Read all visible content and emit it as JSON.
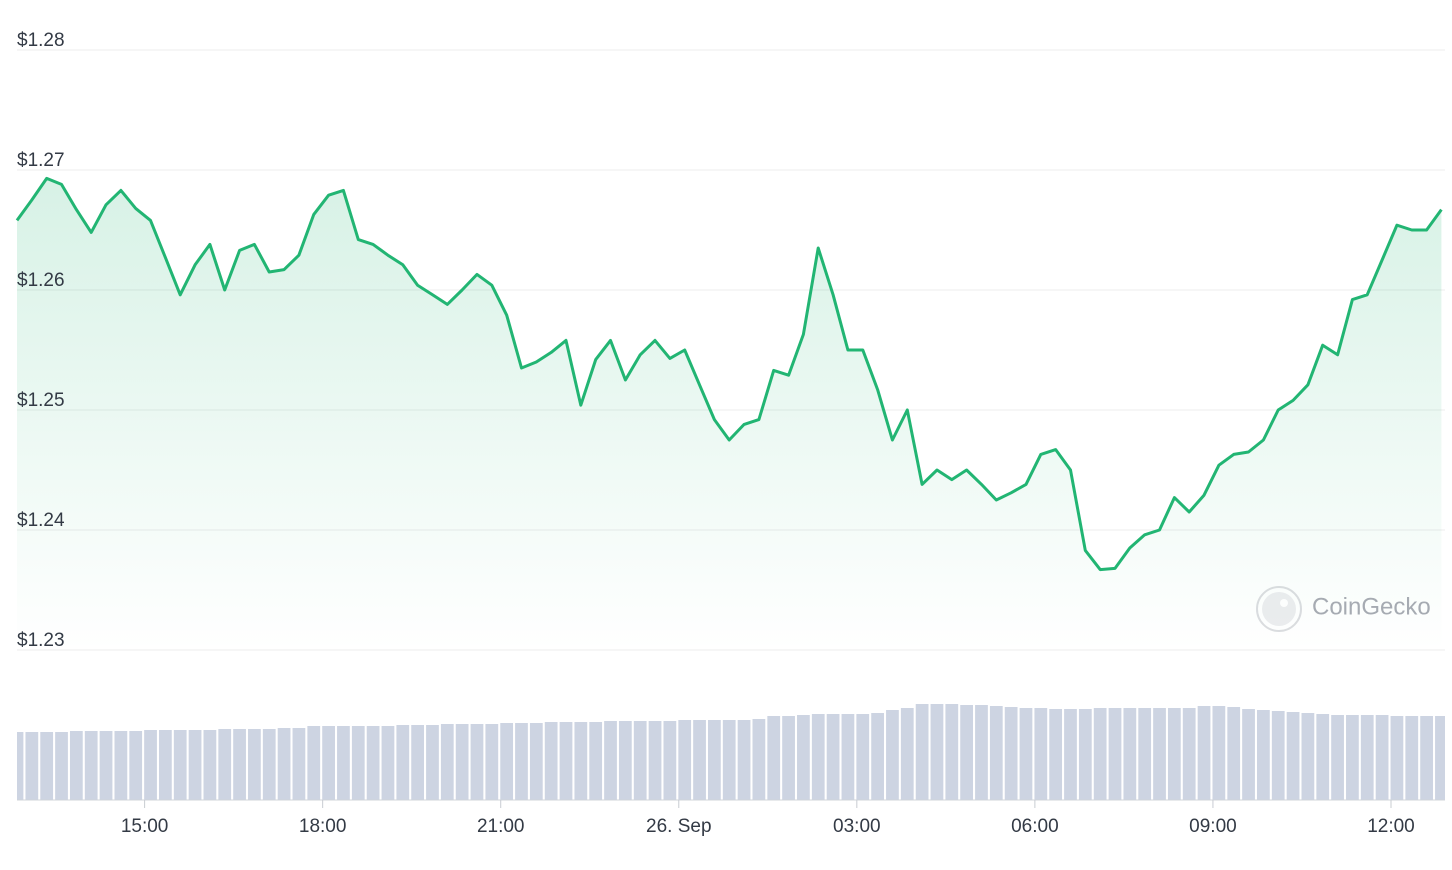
{
  "chart_data": {
    "type": "line",
    "watermark": "CoinGecko",
    "x": [
      12.85,
      13.1,
      13.35,
      13.6,
      13.85,
      14.1,
      14.35,
      14.6,
      14.85,
      15.1,
      15.35,
      15.6,
      15.85,
      16.1,
      16.35,
      16.6,
      16.85,
      17.1,
      17.35,
      17.6,
      17.85,
      18.1,
      18.35,
      18.6,
      18.85,
      19.1,
      19.35,
      19.6,
      19.85,
      20.1,
      20.35,
      20.6,
      20.85,
      21.1,
      21.35,
      21.6,
      21.85,
      22.1,
      22.35,
      22.6,
      22.85,
      23.1,
      23.35,
      23.6,
      23.85,
      24.1,
      24.35,
      24.6,
      24.85,
      25.1,
      25.35,
      25.6,
      25.85,
      26.1,
      26.35,
      26.6,
      26.85,
      27.1,
      27.35,
      27.6,
      27.85,
      28.1,
      28.35,
      28.6,
      28.85,
      29.1,
      29.35,
      29.6,
      29.85,
      30.1,
      30.35,
      30.6,
      30.85,
      31.1,
      31.35,
      31.6,
      31.85,
      32.1,
      32.35,
      32.6,
      32.85,
      33.1,
      33.35,
      33.6,
      33.85,
      34.1,
      34.35,
      34.6,
      34.85,
      35.1,
      35.35,
      35.6,
      35.85,
      36.1,
      36.35,
      36.6,
      36.85
    ],
    "series": [
      {
        "name": "Price",
        "color": "#22b573",
        "values": [
          1.2658,
          1.2675,
          1.2693,
          1.2688,
          1.2667,
          1.2648,
          1.2671,
          1.2683,
          1.2668,
          1.2658,
          1.2627,
          1.2596,
          1.2621,
          1.2638,
          1.26,
          1.2633,
          1.2638,
          1.2615,
          1.2617,
          1.2629,
          1.2663,
          1.2679,
          1.2683,
          1.2642,
          1.2638,
          1.2629,
          1.2621,
          1.2604,
          1.2596,
          1.2588,
          1.26,
          1.2613,
          1.2604,
          1.2579,
          1.2535,
          1.254,
          1.2548,
          1.2558,
          1.2504,
          1.2542,
          1.2558,
          1.2525,
          1.2546,
          1.2558,
          1.2543,
          1.255,
          1.2521,
          1.2492,
          1.2475,
          1.2488,
          1.2492,
          1.2533,
          1.2529,
          1.2563,
          1.2635,
          1.2596,
          1.255,
          1.255,
          1.2517,
          1.2475,
          1.25,
          1.2438,
          1.245,
          1.2442,
          1.245,
          1.2438,
          1.2425,
          1.2431,
          1.2438,
          1.2463,
          1.2467,
          1.245,
          1.2383,
          1.2367,
          1.2368,
          1.2385,
          1.2396,
          1.24,
          1.2427,
          1.2415,
          1.2429,
          1.2454,
          1.2463,
          1.2465,
          1.2475,
          1.25,
          1.2508,
          1.2521,
          1.2554,
          1.2546,
          1.2592,
          1.2596,
          1.2625,
          1.2654,
          1.265,
          1.265,
          1.2667
        ]
      }
    ],
    "volume": {
      "color": "#cdd4e2",
      "ylim": [
        0,
        100
      ],
      "values": [
        68,
        68,
        68,
        68,
        69,
        69,
        69,
        69,
        69,
        70,
        70,
        70,
        70,
        70,
        71,
        71,
        71,
        71,
        72,
        72,
        74,
        74,
        74,
        74,
        74,
        74,
        75,
        75,
        75,
        76,
        76,
        76,
        76,
        77,
        77,
        77,
        78,
        78,
        78,
        78,
        79,
        79,
        79,
        79,
        79,
        80,
        80,
        80,
        80,
        80,
        81,
        84,
        84,
        85,
        86,
        86,
        86,
        86,
        87,
        90,
        92,
        96,
        96,
        96,
        95,
        95,
        94,
        93,
        92,
        92,
        91,
        91,
        91,
        92,
        92,
        92,
        92,
        92,
        92,
        92,
        94,
        94,
        93,
        91,
        90,
        89,
        88,
        87,
        86,
        85,
        85,
        85,
        85,
        84,
        84,
        84,
        84
      ]
    },
    "xlim": [
      12.85,
      36.91
    ],
    "xticks": [
      {
        "value": 15,
        "label": "15:00"
      },
      {
        "value": 18,
        "label": "18:00"
      },
      {
        "value": 21,
        "label": "21:00"
      },
      {
        "value": 24,
        "label": "26. Sep"
      },
      {
        "value": 27,
        "label": "03:00"
      },
      {
        "value": 30,
        "label": "06:00"
      },
      {
        "value": 33,
        "label": "09:00"
      },
      {
        "value": 36,
        "label": "12:00"
      }
    ],
    "ylim": [
      1.23,
      1.28
    ],
    "yticks": [
      {
        "value": 1.28,
        "label": "$1.28"
      },
      {
        "value": 1.27,
        "label": "$1.27"
      },
      {
        "value": 1.26,
        "label": "$1.26"
      },
      {
        "value": 1.25,
        "label": "$1.25"
      },
      {
        "value": 1.24,
        "label": "$1.24"
      },
      {
        "value": 1.23,
        "label": "$1.23"
      }
    ],
    "grid": true
  }
}
